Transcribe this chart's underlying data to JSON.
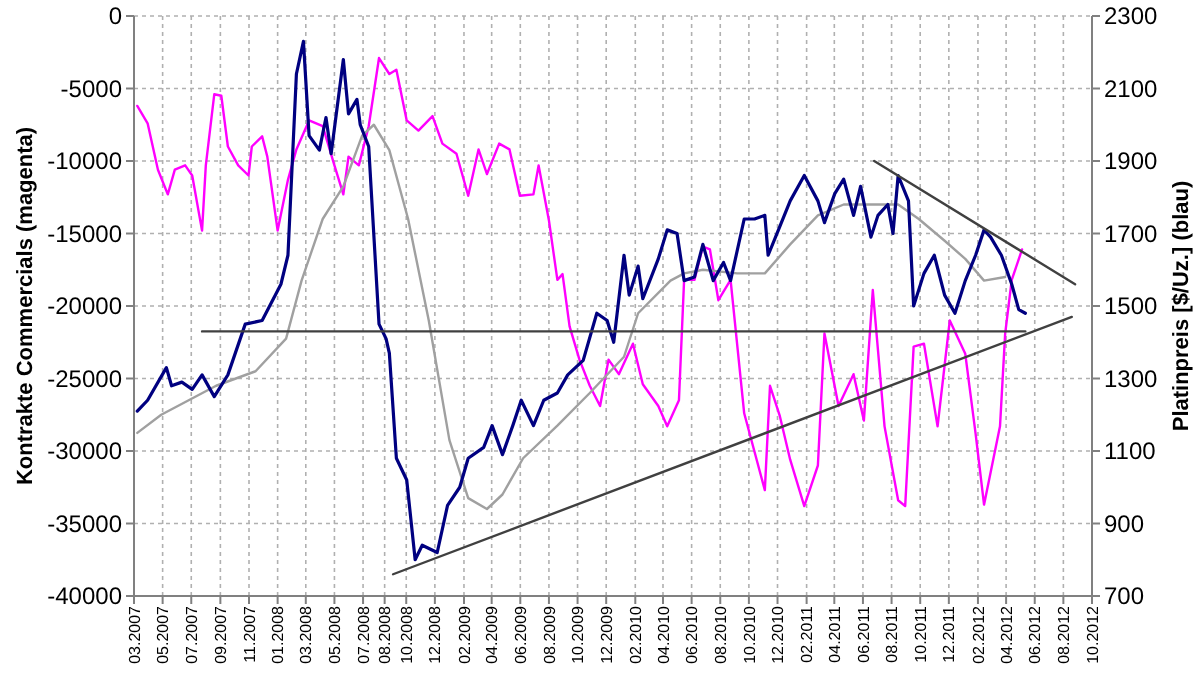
{
  "chart_data": {
    "type": "line",
    "ylabel": "Kontrakte Commercials (magenta)",
    "y2label": "Platinpreis [$/Uz.] (blau)",
    "xlim": [
      "2007-03-01",
      "2012-10-01"
    ],
    "xticks": [
      {
        "value": "2007-03-01",
        "label": "03.2007"
      },
      {
        "value": "2007-05-01",
        "label": "05.2007"
      },
      {
        "value": "2007-07-01",
        "label": "07.2007"
      },
      {
        "value": "2007-09-01",
        "label": "09.2007"
      },
      {
        "value": "2007-11-01",
        "label": "11.2007"
      },
      {
        "value": "2008-01-01",
        "label": "01.2008"
      },
      {
        "value": "2008-03-01",
        "label": "03.2008"
      },
      {
        "value": "2008-05-01",
        "label": "05.2008"
      },
      {
        "value": "2008-07-01",
        "label": "07.2008"
      },
      {
        "value": "2008-08-16",
        "label": "08.2008"
      },
      {
        "value": "2008-10-01",
        "label": "10.2008"
      },
      {
        "value": "2008-12-01",
        "label": "12.2008"
      },
      {
        "value": "2009-02-01",
        "label": "02.2009"
      },
      {
        "value": "2009-04-01",
        "label": "04.2009"
      },
      {
        "value": "2009-06-01",
        "label": "06.2009"
      },
      {
        "value": "2009-08-01",
        "label": "08.2009"
      },
      {
        "value": "2009-10-01",
        "label": "10.2009"
      },
      {
        "value": "2009-12-01",
        "label": "12.2009"
      },
      {
        "value": "2010-02-01",
        "label": "02.2010"
      },
      {
        "value": "2010-04-01",
        "label": "04.2010"
      },
      {
        "value": "2010-06-01",
        "label": "06.2010"
      },
      {
        "value": "2010-08-01",
        "label": "08.2010"
      },
      {
        "value": "2010-10-01",
        "label": "10.2010"
      },
      {
        "value": "2010-12-01",
        "label": "12.2010"
      },
      {
        "value": "2011-02-01",
        "label": "02.2011"
      },
      {
        "value": "2011-04-01",
        "label": "04.2011"
      },
      {
        "value": "2011-06-01",
        "label": "06.2011"
      },
      {
        "value": "2011-08-01",
        "label": "08.2011"
      },
      {
        "value": "2011-10-01",
        "label": "10.2011"
      },
      {
        "value": "2011-12-01",
        "label": "12.2011"
      },
      {
        "value": "2012-02-01",
        "label": "02.2012"
      },
      {
        "value": "2012-04-01",
        "label": "04.2012"
      },
      {
        "value": "2012-06-01",
        "label": "06.2012"
      },
      {
        "value": "2012-08-01",
        "label": "08.2012"
      },
      {
        "value": "2012-10-01",
        "label": "10.2012"
      }
    ],
    "ylim": [
      -40000,
      0
    ],
    "yticks": [
      -40000,
      -35000,
      -30000,
      -25000,
      -20000,
      -15000,
      -10000,
      -5000,
      0
    ],
    "y2lim": [
      700,
      2300
    ],
    "y2ticks": [
      700,
      900,
      1100,
      1300,
      1500,
      1700,
      1900,
      2100,
      2300
    ],
    "grid": true,
    "line_style": "solid",
    "series": [
      {
        "color": "#ff00ff",
        "axis": "y",
        "x": [
          "2007-03-08",
          "2007-03-30",
          "2007-04-21",
          "2007-05-12",
          "2007-05-27",
          "2007-06-18",
          "2007-07-03",
          "2007-07-24",
          "2007-08-01",
          "2007-08-19",
          "2007-09-03",
          "2007-09-17",
          "2007-10-09",
          "2007-10-31",
          "2007-11-07",
          "2007-11-29",
          "2007-12-10",
          "2008-01-01",
          "2008-01-23",
          "2008-02-10",
          "2008-03-08",
          "2008-04-06",
          "2008-05-01",
          "2008-05-20",
          "2008-05-31",
          "2008-06-22",
          "2008-07-13",
          "2008-08-04",
          "2008-08-26",
          "2008-09-10",
          "2008-10-02",
          "2008-10-27",
          "2008-11-26",
          "2008-12-17",
          "2009-01-16",
          "2009-02-10",
          "2009-03-04",
          "2009-03-22",
          "2009-04-17",
          "2009-05-09",
          "2009-05-31",
          "2009-06-29",
          "2009-07-10",
          "2009-08-01",
          "2009-08-19",
          "2009-08-30",
          "2009-09-14",
          "2009-10-05",
          "2009-10-27",
          "2009-11-18",
          "2009-12-06",
          "2009-12-28",
          "2010-01-27",
          "2010-02-17",
          "2010-03-22",
          "2010-04-10",
          "2010-05-05",
          "2010-05-16",
          "2010-06-07",
          "2010-06-25",
          "2010-07-10",
          "2010-07-28",
          "2010-08-23",
          "2010-09-21",
          "2010-11-04",
          "2010-11-15",
          "2010-12-06",
          "2010-12-28",
          "2011-01-27",
          "2011-02-25",
          "2011-03-11",
          "2011-04-10",
          "2011-05-12",
          "2011-06-03",
          "2011-06-22",
          "2011-07-17",
          "2011-08-15",
          "2011-08-30",
          "2011-09-17",
          "2011-10-09",
          "2011-11-07",
          "2011-12-03",
          "2012-01-05",
          "2012-01-27",
          "2012-02-14",
          "2012-03-19",
          "2012-03-30",
          "2012-04-13",
          "2012-05-05"
        ],
        "values": [
          -6200,
          -7400,
          -10600,
          -12300,
          -10600,
          -10300,
          -11000,
          -14800,
          -10300,
          -5400,
          -5500,
          -9000,
          -10300,
          -11000,
          -9000,
          -8300,
          -9700,
          -14800,
          -11300,
          -9200,
          -7200,
          -7600,
          -10300,
          -12300,
          -9700,
          -10300,
          -7600,
          -2900,
          -4000,
          -3700,
          -7200,
          -7900,
          -6900,
          -8800,
          -9500,
          -12400,
          -9200,
          -10900,
          -8800,
          -9200,
          -12400,
          -12300,
          -10300,
          -14100,
          -18200,
          -17800,
          -21400,
          -23700,
          -25500,
          -26900,
          -23700,
          -24700,
          -22600,
          -25400,
          -26900,
          -28300,
          -26500,
          -18200,
          -18200,
          -15900,
          -16100,
          -19600,
          -18200,
          -27400,
          -32700,
          -25500,
          -27600,
          -30600,
          -33800,
          -31000,
          -21900,
          -26900,
          -24700,
          -27900,
          -18900,
          -28300,
          -33400,
          -33800,
          -22800,
          -22600,
          -28300,
          -21000,
          -23300,
          -28800,
          -33700,
          -28300,
          -21900,
          -18200,
          -16100
        ]
      },
      {
        "color": "#a0a0a0",
        "axis": "y2",
        "x": [
          "2007-03-08",
          "2007-04-28",
          "2007-08-23",
          "2007-11-15",
          "2008-01-19",
          "2008-02-21",
          "2008-04-06",
          "2008-05-20",
          "2008-06-29",
          "2008-07-24",
          "2008-08-26",
          "2008-10-05",
          "2008-11-18",
          "2009-01-01",
          "2009-02-10",
          "2009-03-22",
          "2009-04-24",
          "2009-06-07",
          "2009-08-19",
          "2009-10-27",
          "2010-01-08",
          "2010-02-07",
          "2010-04-17",
          "2010-05-16",
          "2010-06-25",
          "2010-09-06",
          "2010-11-04",
          "2010-12-28",
          "2011-02-25",
          "2011-04-21",
          "2011-06-18",
          "2011-08-15",
          "2011-09-28",
          "2011-11-22",
          "2012-01-05",
          "2012-02-14",
          "2012-03-30"
        ],
        "values": [
          1150,
          1200,
          1280,
          1320,
          1410,
          1570,
          1740,
          1830,
          1970,
          2000,
          1930,
          1740,
          1460,
          1130,
          970,
          940,
          980,
          1080,
          1170,
          1260,
          1360,
          1480,
          1570,
          1590,
          1600,
          1590,
          1590,
          1670,
          1750,
          1780,
          1780,
          1780,
          1740,
          1680,
          1630,
          1570,
          1580
        ]
      },
      {
        "color": "#000080",
        "axis": "y2",
        "x": [
          "2007-03-08",
          "2007-03-30",
          "2007-05-09",
          "2007-05-20",
          "2007-06-11",
          "2007-07-03",
          "2007-07-24",
          "2007-08-19",
          "2007-09-17",
          "2007-10-24",
          "2007-11-29",
          "2008-01-08",
          "2008-01-23",
          "2008-02-10",
          "2008-02-25",
          "2008-03-08",
          "2008-03-30",
          "2008-04-13",
          "2008-04-24",
          "2008-05-20",
          "2008-05-31",
          "2008-06-18",
          "2008-06-25",
          "2008-07-13",
          "2008-08-04",
          "2008-08-19",
          "2008-08-26",
          "2008-09-10",
          "2008-10-02",
          "2008-10-20",
          "2008-11-04",
          "2008-12-06",
          "2008-12-28",
          "2009-01-23",
          "2009-02-10",
          "2009-03-15",
          "2009-04-02",
          "2009-04-24",
          "2009-05-16",
          "2009-06-03",
          "2009-06-29",
          "2009-07-21",
          "2009-08-19",
          "2009-09-10",
          "2009-10-13",
          "2009-11-11",
          "2009-12-03",
          "2009-12-17",
          "2010-01-08",
          "2010-01-19",
          "2010-02-07",
          "2010-02-17",
          "2010-03-22",
          "2010-04-10",
          "2010-05-01",
          "2010-05-16",
          "2010-06-07",
          "2010-06-25",
          "2010-07-17",
          "2010-08-08",
          "2010-08-23",
          "2010-09-21",
          "2010-10-13",
          "2010-11-04",
          "2010-11-11",
          "2010-12-03",
          "2010-12-28",
          "2011-01-27",
          "2011-02-25",
          "2011-03-11",
          "2011-04-02",
          "2011-04-21",
          "2011-05-12",
          "2011-05-27",
          "2011-06-18",
          "2011-07-03",
          "2011-07-24",
          "2011-08-04",
          "2011-08-15",
          "2011-09-06",
          "2011-09-17",
          "2011-10-09",
          "2011-10-31",
          "2011-11-22",
          "2011-12-14",
          "2012-01-05",
          "2012-01-27",
          "2012-02-14",
          "2012-02-28",
          "2012-03-22",
          "2012-04-13",
          "2012-04-28",
          "2012-05-12"
        ],
        "values": [
          1210,
          1240,
          1330,
          1280,
          1290,
          1270,
          1310,
          1250,
          1310,
          1450,
          1460,
          1560,
          1640,
          2140,
          2230,
          1970,
          1930,
          2020,
          1920,
          2180,
          2030,
          2070,
          2000,
          1940,
          1450,
          1410,
          1370,
          1080,
          1020,
          800,
          840,
          820,
          950,
          1000,
          1080,
          1110,
          1170,
          1090,
          1170,
          1240,
          1170,
          1240,
          1260,
          1310,
          1350,
          1480,
          1460,
          1400,
          1640,
          1530,
          1610,
          1520,
          1630,
          1710,
          1700,
          1570,
          1580,
          1670,
          1570,
          1620,
          1570,
          1740,
          1740,
          1750,
          1640,
          1710,
          1790,
          1860,
          1790,
          1730,
          1810,
          1850,
          1750,
          1830,
          1690,
          1750,
          1780,
          1700,
          1860,
          1790,
          1500,
          1590,
          1640,
          1530,
          1480,
          1570,
          1640,
          1710,
          1690,
          1640,
          1560,
          1490,
          1480
        ]
      },
      {
        "color": "#404040",
        "axis": "y2",
        "x": [
          "2007-07-24",
          "2012-05-12"
        ],
        "values": [
          1430,
          1430
        ]
      },
      {
        "color": "#404040",
        "axis": "y2",
        "x": [
          "2008-09-03",
          "2012-08-19"
        ],
        "values": [
          760,
          1470
        ]
      },
      {
        "color": "#404040",
        "axis": "y2",
        "x": [
          "2011-06-25",
          "2012-08-26"
        ],
        "values": [
          1900,
          1560
        ]
      }
    ]
  }
}
